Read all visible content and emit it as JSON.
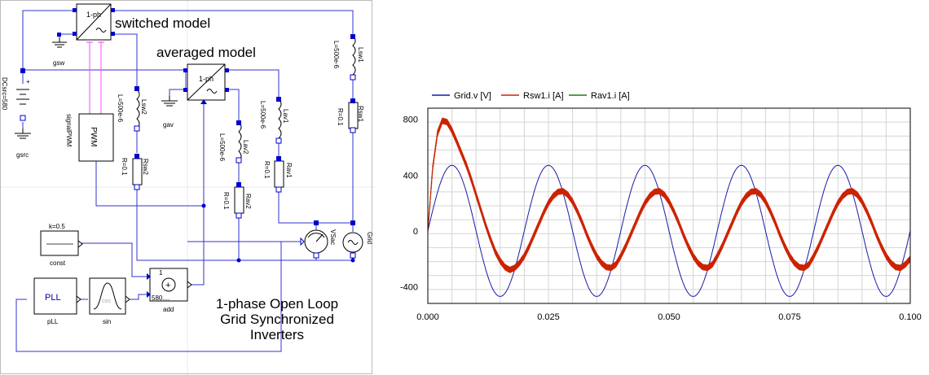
{
  "diagram": {
    "title_lines": [
      "1-phase Open Loop",
      "Grid Synchronized",
      "Inverters"
    ],
    "switched_label": "switched model",
    "averaged_label": "averaged model",
    "inverter_block_label": "1-ph",
    "inverter_avg_block_label": "1-ph",
    "pwm_label": "PWM",
    "pwm_side_label": "signalPWM",
    "pll_label": "PLL",
    "pll_name": "pLL",
    "sin_name": "sin",
    "sin_inner": "cos",
    "const_param": "k=0.5",
    "const_name": "const",
    "add_name": "add",
    "add_gain1": "1",
    "add_gain2": "580....",
    "dc_source_label": "DCsrc=580",
    "gsrc_label": "gsrc",
    "gsw_label": "gsw",
    "gav_label": "gav",
    "lsw1_name": "Lsw1",
    "lsw1_param": "L=500e-6",
    "rsw1_name": "Rsw1",
    "rsw1_param": "R=0.1",
    "lsw2_name": "Lsw2",
    "lsw2_param": "L=500e-6",
    "rsw2_name": "Rsw2",
    "rsw2_param": "R=0.1",
    "lav1_name": "Lav1",
    "lav1_param": "L=500e-6",
    "rav1_name": "Rav1",
    "rav1_param": "R=0.1",
    "lav2_name": "Lav2",
    "lav2_param": "L=500e-6",
    "rav2_name": "Rav2",
    "rav2_param": "R=0.1",
    "vsac_label": "VSac",
    "grid_label": "Grid",
    "colors": {
      "wire": "#3333cc",
      "pwm_signal": "#ff44ff",
      "block_border": "#000000",
      "connector": "#0000cc"
    }
  },
  "chart_data": {
    "type": "line",
    "xlim": [
      0.0,
      0.1
    ],
    "ylim": [
      -520,
      880
    ],
    "x_ticks": [
      0.0,
      0.025,
      0.05,
      0.075,
      0.1
    ],
    "x_tick_labels": [
      "0.000",
      "0.025",
      "0.050",
      "0.075",
      "0.100"
    ],
    "y_ticks": [
      800,
      400,
      0,
      -400
    ],
    "y_tick_labels": [
      "800",
      "400",
      "0",
      "-400"
    ],
    "grid": true,
    "legend_position": "top-left",
    "series": [
      {
        "name": "Grid.v [V]",
        "color": "#1a1aaa",
        "x": [
          0,
          0.00125,
          0.0025,
          0.00375,
          0.005,
          0.00625,
          0.0075,
          0.00875,
          0.01,
          0.01125,
          0.0125,
          0.01375,
          0.015,
          0.01625,
          0.0175,
          0.01875,
          0.02,
          0.02125,
          0.0225,
          0.02375,
          0.025,
          0.02625,
          0.0275,
          0.02875,
          0.03,
          0.03125,
          0.0325,
          0.03375,
          0.035,
          0.03625,
          0.0375,
          0.03875,
          0.04,
          0.04125,
          0.0425,
          0.04375,
          0.045,
          0.04625,
          0.0475,
          0.04875,
          0.05,
          0.05125,
          0.0525,
          0.05375,
          0.055,
          0.05625,
          0.0575,
          0.05875,
          0.06,
          0.06125,
          0.0625,
          0.06375,
          0.065,
          0.06625,
          0.0675,
          0.06875,
          0.07,
          0.07125,
          0.0725,
          0.07375,
          0.075,
          0.07625,
          0.0775,
          0.07875,
          0.08,
          0.08125,
          0.0825,
          0.08375,
          0.085,
          0.08625,
          0.0875,
          0.08875,
          0.09,
          0.09125,
          0.0925,
          0.09375,
          0.095,
          0.09625,
          0.0975,
          0.09875,
          0.1
        ],
        "y": [
          0,
          180,
          333,
          435,
          470,
          435,
          333,
          180,
          0,
          -180,
          -333,
          -435,
          -470,
          -435,
          -333,
          -180,
          0,
          180,
          333,
          435,
          470,
          435,
          333,
          180,
          0,
          -180,
          -333,
          -435,
          -470,
          -435,
          -333,
          -180,
          0,
          180,
          333,
          435,
          470,
          435,
          333,
          180,
          0,
          -180,
          -333,
          -435,
          -470,
          -435,
          -333,
          -180,
          0,
          180,
          333,
          435,
          470,
          435,
          333,
          180,
          0,
          -180,
          -333,
          -435,
          -470,
          -435,
          -333,
          -180,
          0,
          180,
          333,
          435,
          470,
          435,
          333,
          180,
          0,
          -180,
          -333,
          -435,
          -470,
          -435,
          -333,
          -180,
          0
        ]
      },
      {
        "name": "Rsw1.i [A]",
        "color": "#cc2200",
        "x": [
          0,
          0.001,
          0.002,
          0.003,
          0.004,
          0.005,
          0.006,
          0.007,
          0.008,
          0.009,
          0.01,
          0.011,
          0.012,
          0.013,
          0.014,
          0.015,
          0.016,
          0.017,
          0.018,
          0.019,
          0.02,
          0.021,
          0.022,
          0.023,
          0.024,
          0.025,
          0.026,
          0.027,
          0.028,
          0.029,
          0.03,
          0.031,
          0.032,
          0.033,
          0.034,
          0.035,
          0.036,
          0.037,
          0.038,
          0.039,
          0.04,
          0.041,
          0.042,
          0.043,
          0.044,
          0.045,
          0.046,
          0.047,
          0.048,
          0.049,
          0.05,
          0.051,
          0.052,
          0.053,
          0.054,
          0.055,
          0.056,
          0.057,
          0.058,
          0.059,
          0.06,
          0.061,
          0.062,
          0.063,
          0.064,
          0.065,
          0.066,
          0.067,
          0.068,
          0.069,
          0.07,
          0.071,
          0.072,
          0.073,
          0.074,
          0.075,
          0.076,
          0.077,
          0.078,
          0.079,
          0.08,
          0.081,
          0.082,
          0.083,
          0.084,
          0.085,
          0.086,
          0.087,
          0.088,
          0.089,
          0.09,
          0.091,
          0.092,
          0.093,
          0.094,
          0.095,
          0.096,
          0.097,
          0.098,
          0.099,
          0.1
        ],
        "y": [
          0,
          450,
          700,
          790,
          780,
          720,
          640,
          555,
          470,
          370,
          260,
          150,
          40,
          -60,
          -150,
          -215,
          -260,
          -280,
          -265,
          -230,
          -180,
          -110,
          -30,
          50,
          130,
          200,
          250,
          280,
          285,
          260,
          210,
          140,
          60,
          -30,
          -110,
          -180,
          -230,
          -260,
          -265,
          -240,
          -180,
          -110,
          -30,
          50,
          130,
          200,
          250,
          280,
          285,
          260,
          210,
          140,
          60,
          -30,
          -110,
          -180,
          -230,
          -260,
          -265,
          -240,
          -180,
          -110,
          -30,
          50,
          130,
          200,
          250,
          280,
          285,
          260,
          210,
          140,
          60,
          -30,
          -110,
          -180,
          -230,
          -260,
          -265,
          -240,
          -180,
          -110,
          -30,
          50,
          130,
          200,
          250,
          280,
          285,
          260,
          210,
          140,
          60,
          -30,
          -110,
          -180,
          -230,
          -260,
          -265,
          -240,
          -200
        ]
      },
      {
        "name": "Rav1.i [A]",
        "color": "#1a7a1a",
        "x": [
          0,
          0.001,
          0.002,
          0.003,
          0.004,
          0.005,
          0.006,
          0.007,
          0.008,
          0.009,
          0.01,
          0.011,
          0.012,
          0.013,
          0.014,
          0.015,
          0.016,
          0.017,
          0.018,
          0.019,
          0.02,
          0.021,
          0.022,
          0.023,
          0.024,
          0.025,
          0.026,
          0.027,
          0.028,
          0.029,
          0.03,
          0.031,
          0.032,
          0.033,
          0.034,
          0.035,
          0.036,
          0.037,
          0.038,
          0.039,
          0.04,
          0.041,
          0.042,
          0.043,
          0.044,
          0.045,
          0.046,
          0.047,
          0.048,
          0.049,
          0.05,
          0.051,
          0.052,
          0.053,
          0.054,
          0.055,
          0.056,
          0.057,
          0.058,
          0.059,
          0.06,
          0.061,
          0.062,
          0.063,
          0.064,
          0.065,
          0.066,
          0.067,
          0.068,
          0.069,
          0.07,
          0.071,
          0.072,
          0.073,
          0.074,
          0.075,
          0.076,
          0.077,
          0.078,
          0.079,
          0.08,
          0.081,
          0.082,
          0.083,
          0.084,
          0.085,
          0.086,
          0.087,
          0.088,
          0.089,
          0.09,
          0.091,
          0.092,
          0.093,
          0.094,
          0.095,
          0.096,
          0.097,
          0.098,
          0.099,
          0.1
        ],
        "y": [
          0,
          450,
          700,
          790,
          780,
          720,
          640,
          555,
          470,
          370,
          260,
          150,
          40,
          -60,
          -150,
          -215,
          -260,
          -280,
          -265,
          -230,
          -180,
          -110,
          -30,
          50,
          130,
          200,
          250,
          280,
          285,
          260,
          210,
          140,
          60,
          -30,
          -110,
          -180,
          -230,
          -260,
          -265,
          -240,
          -180,
          -110,
          -30,
          50,
          130,
          200,
          250,
          280,
          285,
          260,
          210,
          140,
          60,
          -30,
          -110,
          -180,
          -230,
          -260,
          -265,
          -240,
          -180,
          -110,
          -30,
          50,
          130,
          200,
          250,
          280,
          285,
          260,
          210,
          140,
          60,
          -30,
          -110,
          -180,
          -230,
          -260,
          -265,
          -240,
          -180,
          -110,
          -30,
          50,
          130,
          200,
          250,
          280,
          285,
          260,
          210,
          140,
          60,
          -30,
          -110,
          -180,
          -230,
          -260,
          -265,
          -240,
          -200
        ]
      }
    ]
  }
}
